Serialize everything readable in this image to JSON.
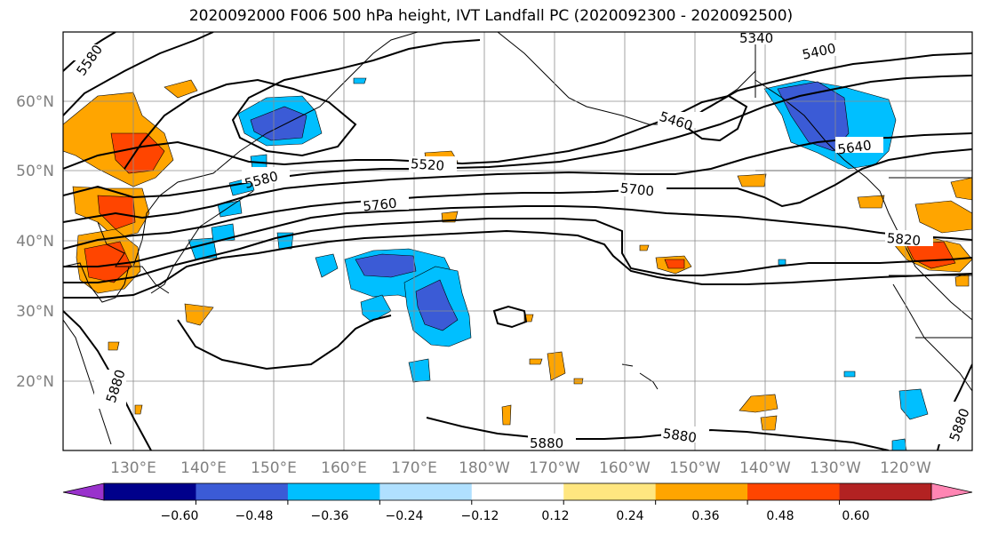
{
  "title": "2020092000 F006 500 hPa height, IVT Landfall PC (2020092300 - 2020092500)",
  "map": {
    "lat_labels": [
      "60°N",
      "50°N",
      "40°N",
      "30°N",
      "20°N"
    ],
    "lon_labels": [
      "130°E",
      "140°E",
      "150°E",
      "160°E",
      "170°E",
      "180°W",
      "170°W",
      "160°W",
      "150°W",
      "140°W",
      "130°W",
      "120°W"
    ],
    "contour_labels": [
      "5580",
      "5340",
      "5400",
      "5460",
      "5640",
      "5520",
      "5580",
      "5760",
      "5700",
      "5820",
      "5880",
      "5880",
      "5880",
      "5880"
    ],
    "label_color": "#808080"
  },
  "colorbar": {
    "ticks": [
      "−0.60",
      "−0.48",
      "−0.36",
      "−0.24",
      "−0.12",
      "0.12",
      "0.24",
      "0.36",
      "0.48",
      "0.60"
    ],
    "colors": [
      "#9932cc",
      "#00008b",
      "#3b5bd6",
      "#00bfff",
      "#b0e0ff",
      "#ffffff",
      "#ffe680",
      "#ffa500",
      "#ff4500",
      "#b22222",
      "#ff85b3"
    ]
  }
}
